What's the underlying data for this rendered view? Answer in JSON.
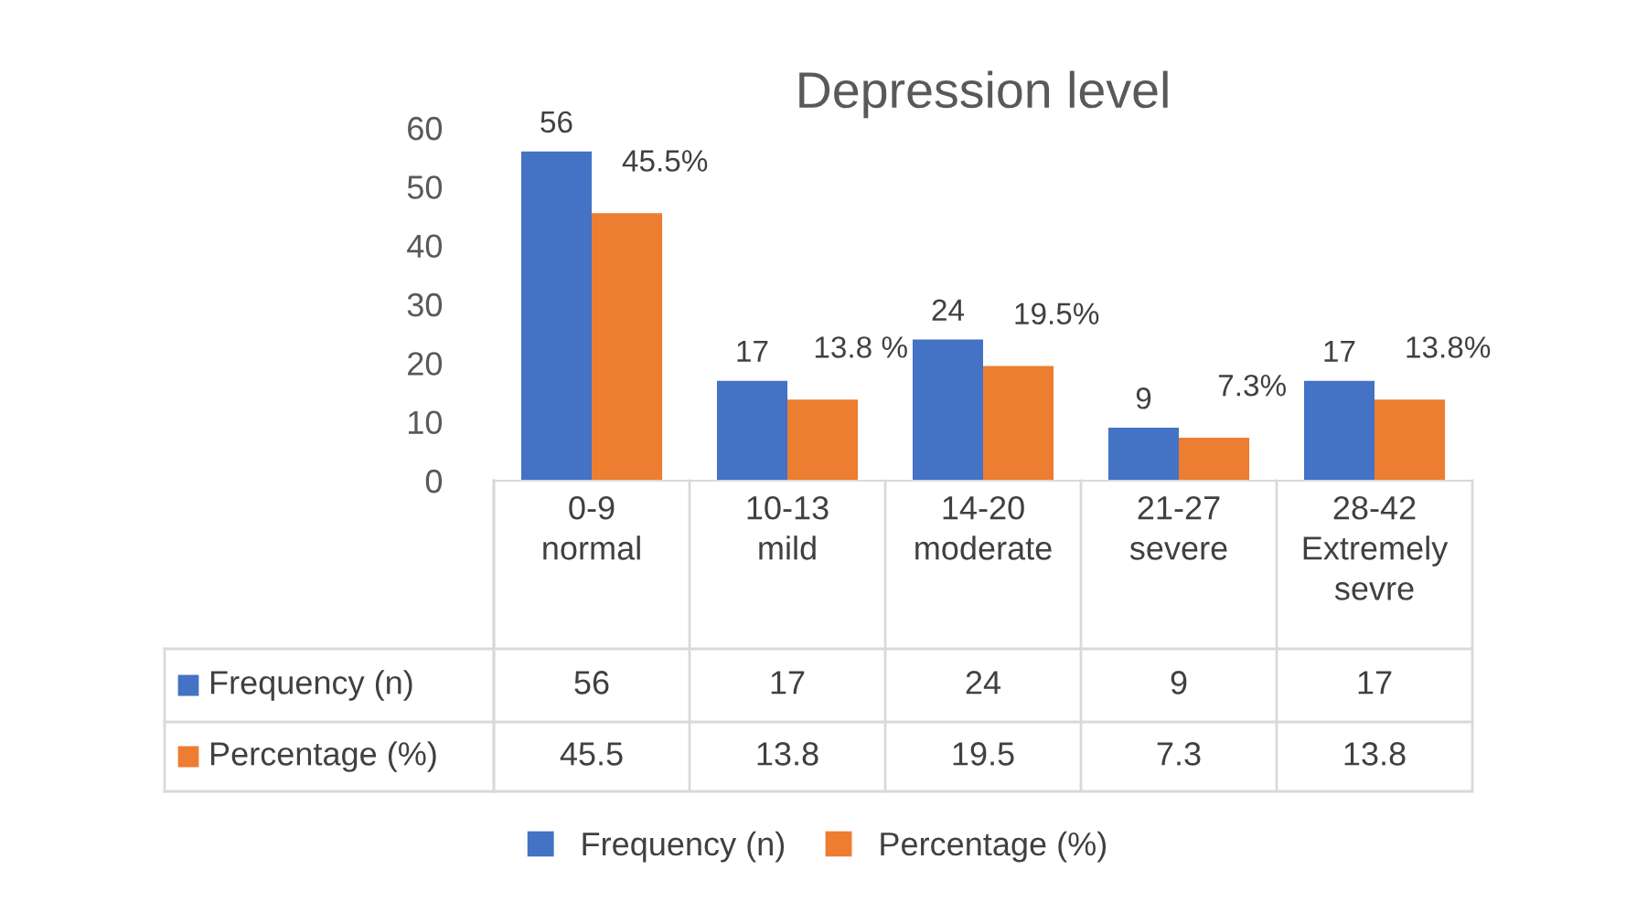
{
  "chart_data": {
    "type": "bar",
    "title": "Depression level",
    "categories": [
      "0-9 normal",
      "10-13 mild",
      "14-20 moderate",
      "21-27 severe",
      "28-42 Extremely sevre"
    ],
    "series": [
      {
        "name": "Frequency (n)",
        "color": "#4472c4",
        "values": [
          56,
          17,
          24,
          9,
          17
        ],
        "value_labels": [
          "56",
          "17",
          "24",
          "9",
          "17"
        ]
      },
      {
        "name": "Percentage (%)",
        "color": "#ed7d31",
        "values": [
          45.5,
          13.8,
          19.5,
          7.3,
          13.8
        ],
        "value_labels": [
          "45.5%",
          "13.8 %",
          "19.5%",
          "7.3%",
          "13.8%"
        ]
      }
    ],
    "ylim": [
      0,
      60
    ],
    "yticks": [
      0,
      10,
      20,
      30,
      40,
      50,
      60
    ],
    "annotations": [
      "56",
      "17",
      "24",
      "9",
      "17",
      "45.5",
      "13.8",
      "19.5",
      "7.3",
      "13.8"
    ],
    "grid": false,
    "legend": "bottom",
    "data_labels": true
  }
}
